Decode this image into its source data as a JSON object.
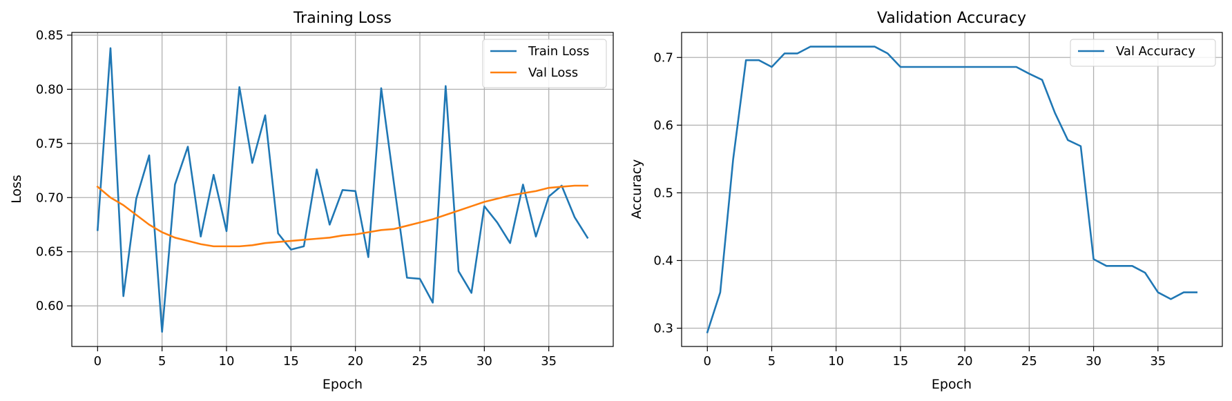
{
  "colors": {
    "series_blue": "#1f77b4",
    "series_orange": "#ff7f0e",
    "grid": "#b0b0b0",
    "legend_border": "#cccccc"
  },
  "chart_data": [
    {
      "type": "line",
      "title": "Training Loss",
      "xlabel": "Epoch",
      "ylabel": "Loss",
      "xlim": [
        -2,
        40
      ],
      "ylim": [
        0.5625,
        0.8525
      ],
      "xticks": [
        0,
        5,
        10,
        15,
        20,
        25,
        30,
        35
      ],
      "yticks": [
        0.6,
        0.65,
        0.7,
        0.75,
        0.8,
        0.85
      ],
      "ytick_labels": [
        "0.60",
        "0.65",
        "0.70",
        "0.75",
        "0.80",
        "0.85"
      ],
      "grid": true,
      "legend_position": "top-right",
      "x": [
        0,
        1,
        2,
        3,
        4,
        5,
        6,
        7,
        8,
        9,
        10,
        11,
        12,
        13,
        14,
        15,
        16,
        17,
        18,
        19,
        20,
        21,
        22,
        23,
        24,
        25,
        26,
        27,
        28,
        29,
        30,
        31,
        32,
        33,
        34,
        35,
        36,
        37,
        38
      ],
      "series": [
        {
          "name": "Train Loss",
          "color": "#1f77b4",
          "values": [
            0.67,
            0.838,
            0.609,
            0.699,
            0.739,
            0.576,
            0.712,
            0.747,
            0.664,
            0.721,
            0.669,
            0.802,
            0.732,
            0.776,
            0.667,
            0.652,
            0.655,
            0.726,
            0.675,
            0.707,
            0.706,
            0.645,
            0.801,
            0.712,
            0.626,
            0.625,
            0.603,
            0.803,
            0.632,
            0.612,
            0.692,
            0.677,
            0.658,
            0.712,
            0.664,
            0.701,
            0.711,
            0.682,
            0.663
          ]
        },
        {
          "name": "Val Loss",
          "color": "#ff7f0e",
          "values": [
            0.71,
            0.7,
            0.693,
            0.684,
            0.675,
            0.668,
            0.663,
            0.66,
            0.657,
            0.655,
            0.655,
            0.655,
            0.656,
            0.658,
            0.659,
            0.66,
            0.661,
            0.662,
            0.663,
            0.665,
            0.666,
            0.668,
            0.67,
            0.671,
            0.674,
            0.677,
            0.68,
            0.684,
            0.688,
            0.692,
            0.696,
            0.699,
            0.702,
            0.704,
            0.706,
            0.709,
            0.71,
            0.711,
            0.711
          ]
        }
      ]
    },
    {
      "type": "line",
      "title": "Validation Accuracy",
      "xlabel": "Epoch",
      "ylabel": "Accuracy",
      "xlim": [
        -2,
        40
      ],
      "ylim": [
        0.273,
        0.737
      ],
      "xticks": [
        0,
        5,
        10,
        15,
        20,
        25,
        30,
        35
      ],
      "yticks": [
        0.3,
        0.4,
        0.5,
        0.6,
        0.7
      ],
      "ytick_labels": [
        "0.3",
        "0.4",
        "0.5",
        "0.6",
        "0.7"
      ],
      "grid": true,
      "legend_position": "top-right",
      "x": [
        0,
        1,
        2,
        3,
        4,
        5,
        6,
        7,
        8,
        9,
        10,
        11,
        12,
        13,
        14,
        15,
        16,
        17,
        18,
        19,
        20,
        21,
        22,
        23,
        24,
        25,
        26,
        27,
        28,
        29,
        30,
        31,
        32,
        33,
        34,
        35,
        36,
        37,
        38
      ],
      "series": [
        {
          "name": "Val Accuracy",
          "color": "#1f77b4",
          "values": [
            0.294,
            0.353,
            0.549,
            0.696,
            0.696,
            0.686,
            0.706,
            0.706,
            0.716,
            0.716,
            0.716,
            0.716,
            0.716,
            0.716,
            0.706,
            0.686,
            0.686,
            0.686,
            0.686,
            0.686,
            0.686,
            0.686,
            0.686,
            0.686,
            0.686,
            0.676,
            0.667,
            0.618,
            0.578,
            0.569,
            0.402,
            0.392,
            0.392,
            0.392,
            0.382,
            0.353,
            0.343,
            0.353,
            0.353
          ]
        }
      ]
    }
  ]
}
